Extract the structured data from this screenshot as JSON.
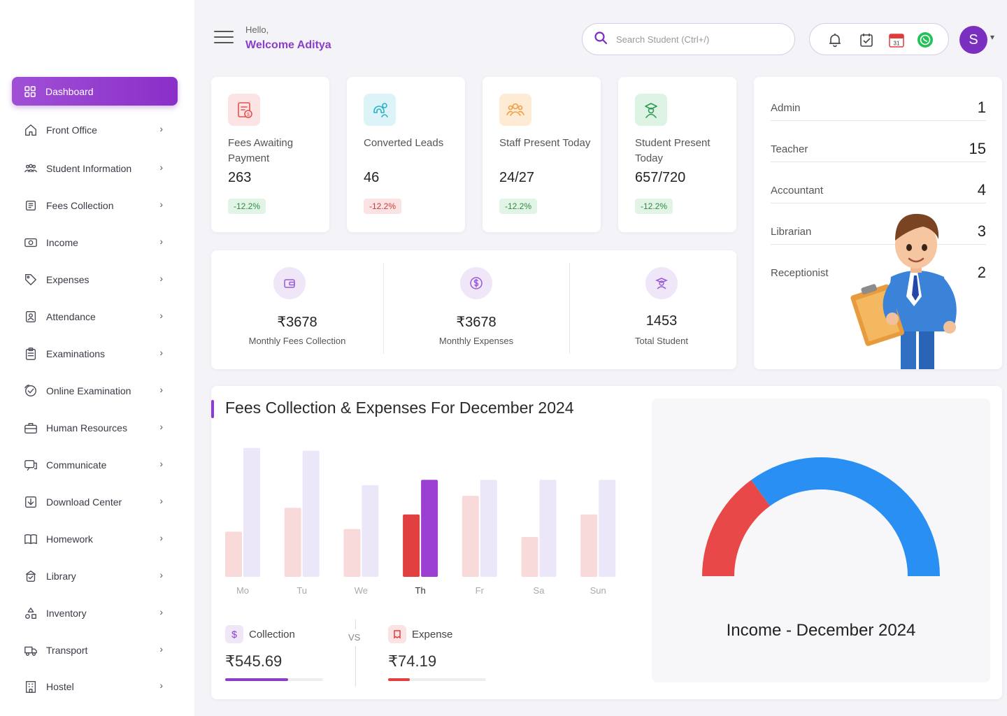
{
  "header": {
    "hello": "Hello,",
    "welcome": "Welcome Aditya",
    "search_placeholder": "Search Student (Ctrl+/)",
    "icons": [
      "bell-icon",
      "task-check-icon",
      "calendar-icon",
      "whatsapp-icon"
    ],
    "calendar_day": "31",
    "avatar_letter": "S"
  },
  "sidebar": {
    "active": {
      "label": "Dashboard",
      "icon": "grid-icon"
    },
    "items": [
      {
        "label": "Front Office",
        "icon": "home-icon"
      },
      {
        "label": "Student Information",
        "icon": "students-icon"
      },
      {
        "label": "Fees Collection",
        "icon": "fees-icon"
      },
      {
        "label": "Income",
        "icon": "money-icon"
      },
      {
        "label": "Expenses",
        "icon": "tag-icon"
      },
      {
        "label": "Attendance",
        "icon": "attendance-icon"
      },
      {
        "label": "Examinations",
        "icon": "clipboard-icon"
      },
      {
        "label": "Online Examination",
        "icon": "online-exam-icon"
      },
      {
        "label": "Human Resources",
        "icon": "briefcase-icon"
      },
      {
        "label": "Communicate",
        "icon": "chat-icon"
      },
      {
        "label": "Download Center",
        "icon": "download-icon"
      },
      {
        "label": "Homework",
        "icon": "book-icon"
      },
      {
        "label": "Library",
        "icon": "library-icon"
      },
      {
        "label": "Inventory",
        "icon": "inventory-icon"
      },
      {
        "label": "Transport",
        "icon": "truck-icon"
      },
      {
        "label": "Hostel",
        "icon": "building-icon"
      }
    ]
  },
  "stats": [
    {
      "label": "Fees Awaiting Payment",
      "value": "263",
      "change": "-12.2%",
      "trend": "green",
      "icon": "fees-invoice-icon",
      "bg": "#fde4e4"
    },
    {
      "label": "Converted Leads",
      "value": "46",
      "change": "-12.2%",
      "trend": "red",
      "icon": "leads-magnet-icon",
      "bg": "#dcf4f8"
    },
    {
      "label": "Staff Present Today",
      "value": "24/27",
      "change": "-12.2%",
      "trend": "green",
      "icon": "staff-icon",
      "bg": "#fdebd6"
    },
    {
      "label": "Student Present Today",
      "value": "657/720",
      "change": "-12.2%",
      "trend": "green",
      "icon": "student-graduate-icon",
      "bg": "#ddf3e3"
    }
  ],
  "summary": [
    {
      "amount": "₹3678",
      "caption": "Monthly Fees Collection",
      "icon": "wallet-icon"
    },
    {
      "amount": "₹3678",
      "caption": "Monthly Expenses",
      "icon": "dollar-coin-icon"
    },
    {
      "amount": "1453",
      "caption": "Total Student",
      "icon": "student-icon"
    }
  ],
  "roles": [
    {
      "name": "Admin",
      "count": "1"
    },
    {
      "name": "Teacher",
      "count": "15"
    },
    {
      "name": "Accountant",
      "count": "4"
    },
    {
      "name": "Librarian",
      "count": "3"
    },
    {
      "name": "Receptionist",
      "count": "2"
    }
  ],
  "chart_data": [
    {
      "type": "bar",
      "title": "Fees Collection & Expenses For December 2024",
      "categories": [
        "Mo",
        "Tu",
        "We",
        "Th",
        "Fr",
        "Sa",
        "Sun"
      ],
      "highlight": "Th",
      "series": [
        {
          "values": [
            34,
            52,
            36,
            47,
            61,
            30,
            47
          ],
          "color": "#f9dada",
          "highlight_color": "#e04040"
        },
        {
          "values": [
            97,
            95,
            69,
            73,
            73,
            73,
            73
          ],
          "color": "#ece6f9",
          "highlight_color": "#9c3fd3"
        }
      ],
      "ylim": [
        0,
        100
      ],
      "grid": false
    },
    {
      "type": "pie",
      "variant": "half-donut",
      "title": "Income - December 2024",
      "values": [
        30,
        70
      ],
      "colors": [
        "#e84848",
        "#2a8ff2"
      ]
    }
  ],
  "bottom": {
    "collection": {
      "label": "Collection",
      "value": "₹545.69",
      "icon": "dollar-icon",
      "progress": 0.64,
      "color": "#8a3ec9"
    },
    "vs": "VS",
    "expense": {
      "label": "Expense",
      "value": "₹74.19",
      "icon": "expense-icon",
      "progress": 0.22,
      "color": "#e04040"
    }
  }
}
